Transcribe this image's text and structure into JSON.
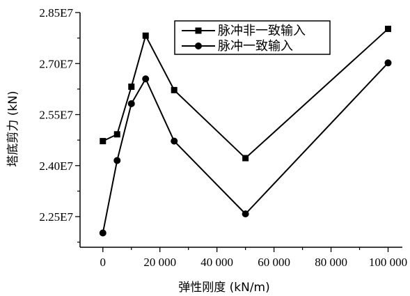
{
  "chart_data": {
    "type": "line",
    "title": "",
    "xlabel": "弹性刚度 (kN/m)",
    "ylabel": "塔底剪力 (kN)",
    "xlim": [
      -8000,
      105000
    ],
    "ylim": [
      21600000.0,
      28500000.0
    ],
    "x_ticks": [
      0,
      20000,
      40000,
      60000,
      80000,
      100000
    ],
    "x_tick_labels": [
      "0",
      "20 000",
      "40 000",
      "60 000",
      "80 000",
      "100 000"
    ],
    "y_ticks": [
      22500000.0,
      24000000.0,
      25500000.0,
      27000000.0,
      28500000.0
    ],
    "y_tick_labels": [
      "2.25E7",
      "2.40E7",
      "2.55E7",
      "2.70E7",
      "2.85E7"
    ],
    "grid": false,
    "legend_position": "top-right",
    "series": [
      {
        "name": "脉冲非一致输入",
        "marker": "square",
        "color": "#000000",
        "x": [
          0,
          5000,
          10000,
          15000,
          25000,
          50000,
          100000
        ],
        "y": [
          24720000.0,
          24920000.0,
          26320000.0,
          27820000.0,
          26220000.0,
          24220000.0,
          28020000.0
        ]
      },
      {
        "name": "脉冲一致输入",
        "marker": "circle",
        "color": "#000000",
        "x": [
          0,
          5000,
          10000,
          15000,
          25000,
          50000,
          100000
        ],
        "y": [
          22020000.0,
          24150000.0,
          25820000.0,
          26550000.0,
          24720000.0,
          22580000.0,
          27020000.0
        ]
      }
    ]
  }
}
